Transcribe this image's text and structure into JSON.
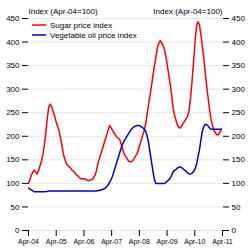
{
  "chart_data": {
    "type": "line",
    "ylabel": "Index (Apr-04=100)",
    "y2label": "Index (Apr-04=100)",
    "x": [
      0,
      0.0522,
      0.1045,
      0.1567,
      0.209,
      0.2612,
      0.3134,
      0.3657,
      0.4179,
      0.4701,
      0.5224,
      0.5746,
      0.6269,
      0.6791,
      0.7313,
      0.7836,
      0.8358,
      0.8881,
      0.9403,
      0.9925,
      1.0448,
      1.097,
      1.1493,
      1.2015,
      1.2537,
      1.306,
      1.3582,
      1.4104,
      1.4627,
      1.5149,
      1.5672,
      1.6194,
      1.6716,
      1.7239,
      1.7761,
      1.8284,
      1.8806,
      1.9328,
      1.9851,
      2.0373,
      2.0896,
      2.1418,
      2.194,
      2.2463,
      2.2985,
      2.3507,
      2.403,
      2.4552,
      2.5075,
      2.5597,
      2.6119,
      2.6642,
      2.7164,
      2.7687,
      2.8209,
      2.8731,
      2.9254,
      2.9776,
      3.0299,
      3.0821,
      3.1343,
      3.1866,
      3.2388,
      3.291,
      3.3433,
      3.3955,
      3.4478,
      3.5,
      3.5522,
      3.6045,
      3.6567,
      3.709,
      3.7612,
      3.8134,
      3.8657,
      3.9179,
      3.9701,
      4.0224,
      4.0746,
      4.1269,
      4.1791,
      4.2313,
      4.2836,
      4.3358,
      4.3881,
      4.4403,
      4.4925,
      4.5448,
      4.597,
      4.6493,
      4.7015,
      4.7537,
      4.806,
      4.8582,
      4.9104,
      4.9627,
      5.0149,
      5.0672,
      5.1194,
      5.1716,
      5.2239,
      5.2761,
      5.3284,
      5.3806,
      5.4328,
      5.4851,
      5.5373,
      5.5896,
      5.6418,
      5.694,
      5.7463,
      5.7985,
      5.8507,
      5.903,
      5.9552,
      6.0075,
      6.0597,
      6.1119,
      6.1642,
      6.2164,
      6.2687,
      6.3209,
      6.3731,
      6.4254,
      6.4776,
      6.5299,
      6.5821,
      6.6343,
      6.6866,
      6.7388,
      6.791,
      6.8433,
      6.8955,
      6.9478,
      7
    ],
    "xlim": [
      0,
      7
    ],
    "xticks": [
      {
        "value": 0,
        "label": "Apr-04"
      },
      {
        "value": 1,
        "label": "Apr-05"
      },
      {
        "value": 2,
        "label": "Apr-06"
      },
      {
        "value": 3,
        "label": "Apr-07"
      },
      {
        "value": 4,
        "label": "Apr-08"
      },
      {
        "value": 5,
        "label": "Apr-09"
      },
      {
        "value": 6,
        "label": "Apr-10"
      },
      {
        "value": 7,
        "label": "Apr-11"
      }
    ],
    "ylim": [
      0,
      450
    ],
    "yticks": [
      0,
      50,
      100,
      150,
      200,
      250,
      300,
      350,
      400,
      450
    ],
    "y2lim": [
      0,
      450
    ],
    "y2ticks": [
      0,
      50,
      100,
      150,
      200,
      250,
      300,
      350,
      400,
      450
    ],
    "grid": true,
    "legend": "upper left",
    "series": [
      {
        "name": "Sugar price index",
        "color": "#ff0000",
        "values": [
          100,
          108,
          118,
          124,
          128,
          124,
          120,
          128,
          138,
          148,
          162,
          183,
          208,
          238,
          263,
          268,
          263,
          253,
          243,
          232,
          222,
          213,
          198,
          183,
          163,
          153,
          143,
          138,
          136,
          133,
          128,
          126,
          123,
          118,
          116,
          113,
          110,
          110,
          110,
          110,
          108,
          106,
          106,
          108,
          108,
          113,
          118,
          128,
          143,
          153,
          163,
          173,
          183,
          193,
          203,
          213,
          223,
          218,
          213,
          208,
          203,
          198,
          196,
          193,
          183,
          173,
          163,
          158,
          153,
          148,
          146,
          146,
          148,
          153,
          158,
          163,
          173,
          183,
          193,
          203,
          213,
          228,
          248,
          268,
          288,
          308,
          330,
          350,
          368,
          388,
          398,
          403,
          398,
          393,
          383,
          368,
          348,
          328,
          308,
          283,
          258,
          243,
          233,
          223,
          218,
          218,
          223,
          228,
          233,
          238,
          243,
          258,
          283,
          318,
          358,
          398,
          433,
          443,
          438,
          418,
          393,
          368,
          338,
          308,
          283,
          258,
          238,
          223,
          213,
          208,
          203,
          203,
          208,
          213,
          218
        ]
      },
      {
        "name": "Vegetable oil price index",
        "color": "#0000cc",
        "values": [
          90,
          88,
          86,
          84,
          82,
          82,
          82,
          82,
          82,
          82,
          82,
          82,
          83,
          83,
          84,
          84,
          84,
          84,
          84,
          84,
          84,
          84,
          84,
          84,
          84,
          84,
          84,
          84,
          84,
          84,
          84,
          84,
          84,
          84,
          84,
          84,
          84,
          84,
          84,
          84,
          84,
          84,
          84,
          84,
          84,
          84,
          84,
          84,
          85,
          85,
          86,
          87,
          88,
          90,
          93,
          97,
          102,
          108,
          115,
          125,
          135,
          145,
          155,
          165,
          175,
          183,
          190,
          195,
          200,
          205,
          210,
          215,
          218,
          220,
          222,
          223,
          223,
          222,
          220,
          218,
          215,
          210,
          200,
          185,
          165,
          145,
          125,
          108,
          100,
          100,
          100,
          100,
          100,
          100,
          100,
          102,
          105,
          108,
          112,
          118,
          125,
          128,
          130,
          133,
          135,
          135,
          133,
          130,
          128,
          125,
          122,
          120,
          120,
          122,
          125,
          130,
          140,
          155,
          170,
          190,
          210,
          220,
          225,
          225,
          222,
          218,
          215,
          215,
          215,
          215,
          215,
          215,
          215,
          215,
          215
        ]
      }
    ]
  }
}
